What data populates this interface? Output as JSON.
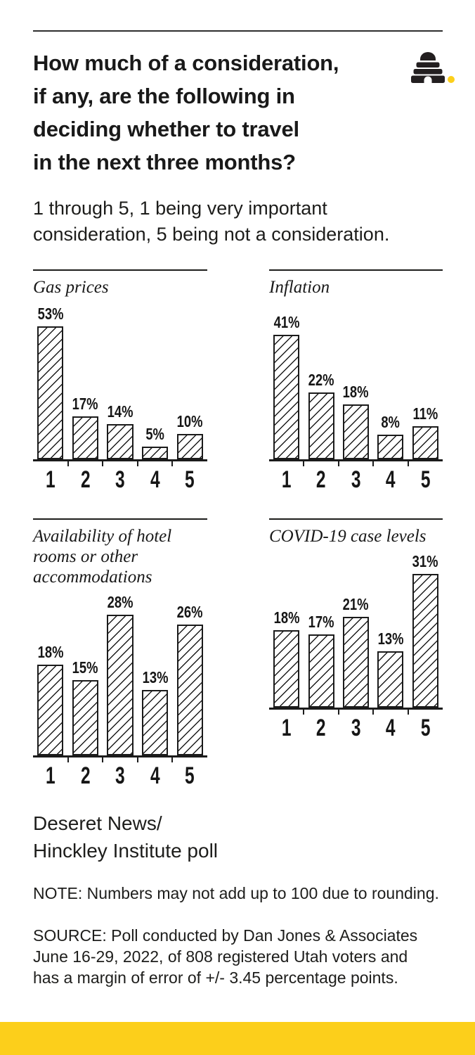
{
  "header": {
    "title": "How much of a consideration,\nif any, are the following in\ndeciding whether to travel\nin the next three months?",
    "subtitle": "1 through 5, 1 being very important\nconsideration, 5 being not a consideration.",
    "logo": "deseret-news-beehive-logo"
  },
  "colors": {
    "accent_yellow": "#fccf1b",
    "ink_black": "#1b1b1b",
    "background": "#ffffff"
  },
  "chart_data": [
    {
      "type": "bar",
      "title": "Gas prices",
      "categories": [
        "1",
        "2",
        "3",
        "4",
        "5"
      ],
      "values": [
        53,
        17,
        14,
        5,
        10
      ],
      "unit": "%",
      "ylim": [
        0,
        62
      ],
      "grid": false,
      "bar_style": "diagonal-hatch"
    },
    {
      "type": "bar",
      "title": "Inflation",
      "categories": [
        "1",
        "2",
        "3",
        "4",
        "5"
      ],
      "values": [
        41,
        22,
        18,
        8,
        11
      ],
      "unit": "%",
      "ylim": [
        0,
        51
      ],
      "grid": false,
      "bar_style": "diagonal-hatch"
    },
    {
      "type": "bar",
      "title": "Availability of hotel\nrooms or other\naccommodations",
      "categories": [
        "1",
        "2",
        "3",
        "4",
        "5"
      ],
      "values": [
        18,
        15,
        28,
        13,
        26
      ],
      "unit": "%",
      "ylim": [
        0,
        32
      ],
      "grid": false,
      "bar_style": "diagonal-hatch"
    },
    {
      "type": "bar",
      "title": "COVID-19 case levels",
      "categories": [
        "1",
        "2",
        "3",
        "4",
        "5"
      ],
      "values": [
        18,
        17,
        21,
        13,
        31
      ],
      "unit": "%",
      "ylim": [
        0,
        36
      ],
      "grid": false,
      "bar_style": "diagonal-hatch"
    }
  ],
  "footer": {
    "attribution": "Deseret News/\nHinckley Institute poll",
    "note": "NOTE: Numbers may not add up to 100 due to rounding.",
    "source": "SOURCE: Poll conducted by Dan Jones & Associates\nJune 16-29, 2022, of 808 registered Utah voters and\nhas a margin of error of +/- 3.45 percentage points."
  }
}
